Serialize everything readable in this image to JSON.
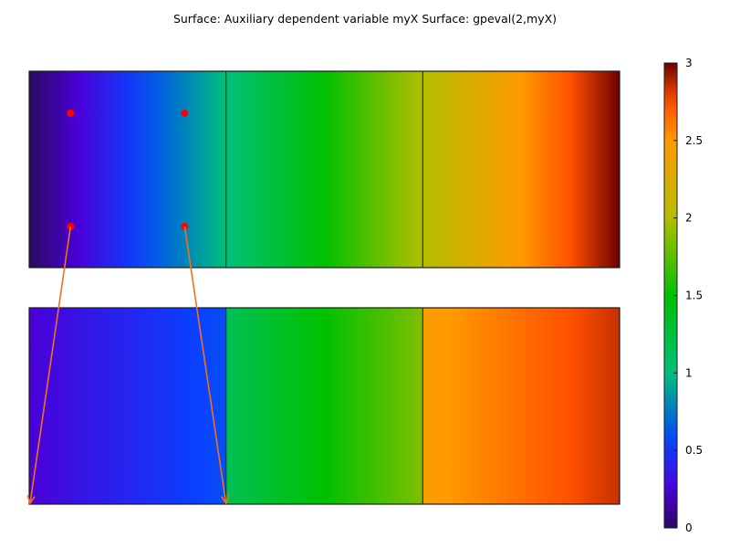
{
  "chart_data": {
    "type": "heatmap",
    "title": "Surface: Auxiliary dependent variable myX Surface: gpeval(2,myX)",
    "xlabel": "",
    "ylabel": "",
    "colorbar": {
      "range": [
        0,
        3
      ],
      "ticks": [
        0,
        0.5,
        1,
        1.5,
        2,
        2.5,
        3
      ],
      "tick_labels": [
        "0",
        "0.5",
        "1",
        "1.5",
        "2",
        "2.5",
        "3"
      ],
      "colormap": "rainbow",
      "stops": [
        {
          "v": 0.0,
          "c": "#2a0a5e"
        },
        {
          "v": 0.25,
          "c": "#4a00d8"
        },
        {
          "v": 0.55,
          "c": "#0a40ff"
        },
        {
          "v": 0.75,
          "c": "#0078c8"
        },
        {
          "v": 1.0,
          "c": "#00c07a"
        },
        {
          "v": 1.5,
          "c": "#00c000"
        },
        {
          "v": 2.0,
          "c": "#b4be00"
        },
        {
          "v": 2.5,
          "c": "#ff9a00"
        },
        {
          "v": 2.75,
          "c": "#ff5000"
        },
        {
          "v": 3.0,
          "c": "#6e0000"
        }
      ]
    },
    "domain": {
      "x_range": [
        0,
        3
      ],
      "element_boundaries": [
        0,
        1,
        2,
        3
      ]
    },
    "surfaces": [
      {
        "name": "myX",
        "profile": "continuous",
        "values_at_x": [
          [
            0,
            0
          ],
          [
            3,
            3
          ]
        ]
      },
      {
        "name": "gpeval(2,myX)",
        "profile": "piecewise",
        "segments": [
          {
            "x": [
              0,
              1
            ],
            "values": [
              0.25,
              0.6
            ]
          },
          {
            "x": [
              1,
              2
            ],
            "values": [
              1.15,
              1.85
            ]
          },
          {
            "x": [
              2,
              3
            ],
            "values": [
              2.45,
              2.85
            ]
          }
        ]
      }
    ],
    "annotations": {
      "point_color": "#ff0000",
      "arrow_color": "#f07020",
      "points": [
        {
          "x": 0.21,
          "row": "upper"
        },
        {
          "x": 0.79,
          "row": "upper"
        },
        {
          "x": 0.21,
          "row": "lower"
        },
        {
          "x": 0.79,
          "row": "lower"
        }
      ],
      "arrows": [
        {
          "from_x": 0.21,
          "to_x": 0.0
        },
        {
          "from_x": 0.79,
          "to_x": 1.0
        }
      ]
    }
  }
}
